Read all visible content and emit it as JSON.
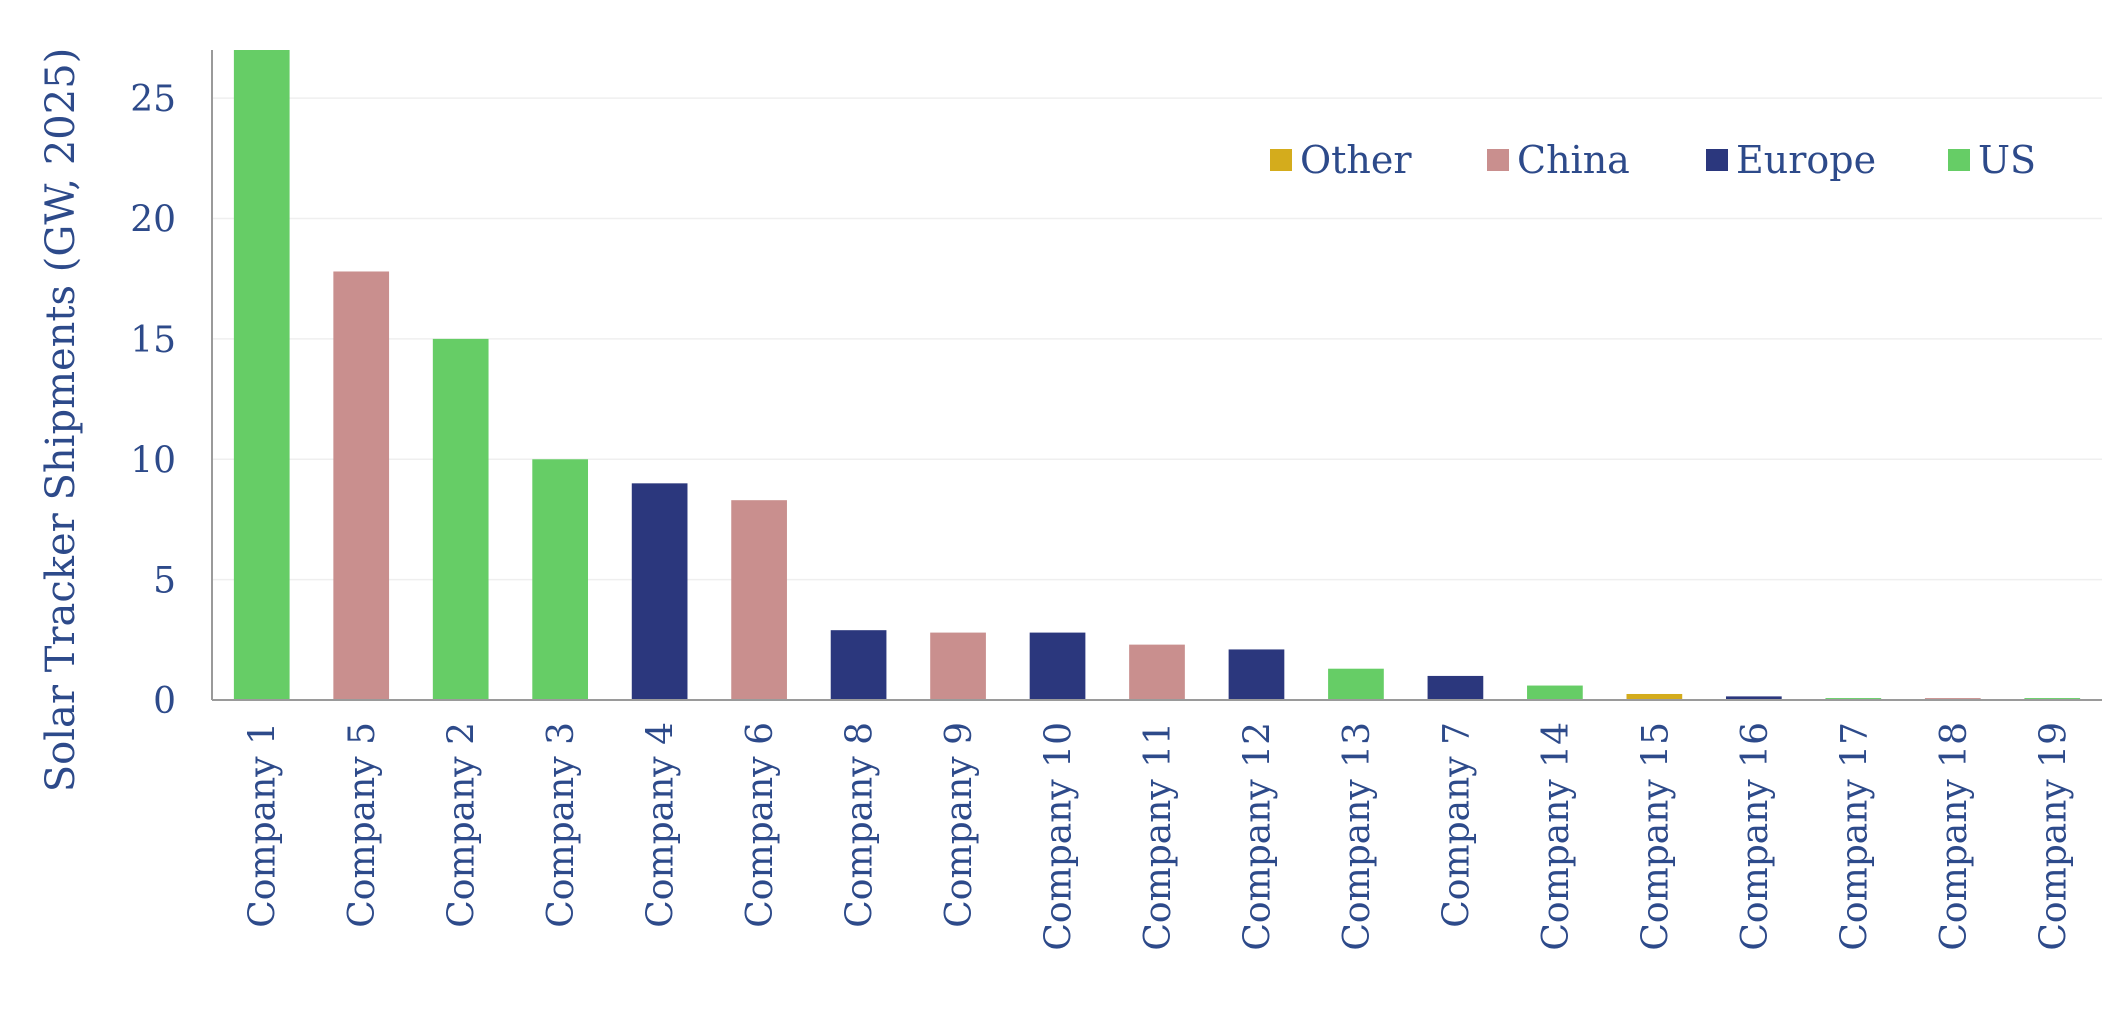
{
  "chart_data": {
    "type": "bar",
    "title": "",
    "xlabel": "",
    "ylabel": "Solar Tracker Shipments (GW, 2025)",
    "ylim": [
      0,
      27
    ],
    "yticks": [
      0,
      5,
      10,
      15,
      20,
      25
    ],
    "grid": true,
    "legend": {
      "placement": "top-right",
      "entries": [
        {
          "name": "Other",
          "color": "#d4ac1c"
        },
        {
          "name": "China",
          "color": "#c98f8e"
        },
        {
          "name": "Europe",
          "color": "#2b377d"
        },
        {
          "name": "US",
          "color": "#66cd66"
        }
      ]
    },
    "categories": [
      "Company 1",
      "Company 5",
      "Company 2",
      "Company 3",
      "Company 4",
      "Company 6",
      "Company 8",
      "Company 9",
      "Company 10",
      "Company 11",
      "Company 12",
      "Company 13",
      "Company 7",
      "Company 14",
      "Company 15",
      "Company 16",
      "Company 17",
      "Company 18",
      "Company 19"
    ],
    "values": [
      27.0,
      17.8,
      15.0,
      10.0,
      9.0,
      8.3,
      2.9,
      2.8,
      2.8,
      2.3,
      2.1,
      1.3,
      1.0,
      0.6,
      0.25,
      0.15,
      0.08,
      0.08,
      0.08
    ],
    "regions": [
      "US",
      "China",
      "US",
      "US",
      "Europe",
      "China",
      "Europe",
      "China",
      "Europe",
      "China",
      "Europe",
      "US",
      "Europe",
      "US",
      "Other",
      "Europe",
      "US",
      "China",
      "US"
    ]
  }
}
